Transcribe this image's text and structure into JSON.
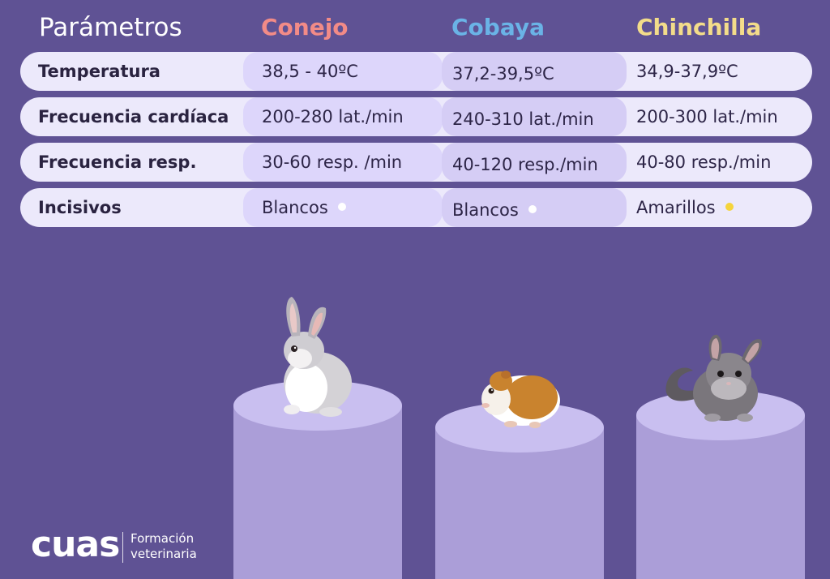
{
  "header": {
    "param": "Parámetros",
    "rabbit": "Conejo",
    "guinea_pig": "Cobaya",
    "chinchilla": "Chinchilla"
  },
  "rows": [
    {
      "label": "Temperatura",
      "rabbit": "38,5 - 40ºC",
      "guinea_pig": "37,2-39,5ºC",
      "chinchilla": "34,9-37,9ºC"
    },
    {
      "label": "Frecuencia cardíaca",
      "rabbit": "200-280 lat./min",
      "guinea_pig": "240-310 lat./min",
      "chinchilla": "200-300 lat./min"
    },
    {
      "label": "Frecuencia resp.",
      "rabbit": "30-60 resp. /min",
      "guinea_pig": "40-120 resp./min",
      "chinchilla": "40-80 resp./min"
    },
    {
      "label": "Incisivos",
      "rabbit": "Blancos",
      "guinea_pig": "Blancos",
      "chinchilla": "Amarillos"
    }
  ],
  "incisor_colors": {
    "rabbit": "#ffffff",
    "guinea_pig": "#ffffff",
    "chinchilla": "#f5d43c"
  },
  "colors": {
    "background": "#5f5294",
    "rabbit_header": "#f28b87",
    "guinea_pig_header": "#6ab3e6",
    "chinchilla_header": "#f3dc8a"
  },
  "logo": {
    "word": "cuas",
    "line1": "Formación",
    "line2": "veterinaria"
  }
}
